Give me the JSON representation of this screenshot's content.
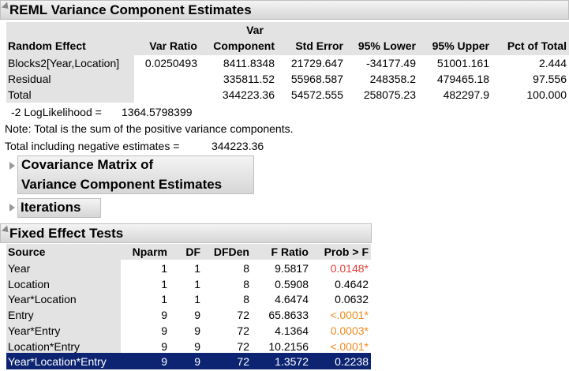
{
  "reml": {
    "title": "REML Variance Component Estimates",
    "header_top": "Var",
    "headers": [
      "Random Effect",
      "Var Ratio",
      "Component",
      "Std Error",
      "95% Lower",
      "95% Upper",
      "Pct of Total"
    ],
    "rows": [
      [
        "Blocks2[Year,Location]",
        "0.0250493",
        "8411.8348",
        "21729.647",
        "-34177.49",
        "51001.161",
        "2.444"
      ],
      [
        "Residual",
        null,
        "335811.52",
        "55968.587",
        "248358.2",
        "479465.18",
        "97.556"
      ],
      [
        "Total",
        null,
        "344223.36",
        "54572.555",
        "258075.23",
        "482297.9",
        "100.000"
      ]
    ],
    "loglik": {
      "label": "-2 LogLikelihood =",
      "value": "1364.5798399"
    },
    "note": "Note: Total is the sum of the positive variance components.",
    "total_negative": {
      "label": "Total including negative estimates =",
      "value": "344223.36"
    }
  },
  "covariance": {
    "lines": [
      "Covariance Matrix of",
      "Variance Component Estimates"
    ]
  },
  "iterations": {
    "title": "Iterations"
  },
  "fixed": {
    "title": "Fixed Effect Tests",
    "headers": [
      "Source",
      "Nparm",
      "DF",
      "DFDen",
      "F Ratio",
      "Prob > F"
    ],
    "rows": [
      {
        "cells": [
          "Year",
          "1",
          "1",
          "8",
          "9.5817",
          "0.0148*"
        ],
        "prob_color": "#e8413c"
      },
      {
        "cells": [
          "Location",
          "1",
          "1",
          "8",
          "0.5908",
          "0.4642"
        ]
      },
      {
        "cells": [
          "Year*Location",
          "1",
          "1",
          "8",
          "4.6474",
          "0.0632"
        ]
      },
      {
        "cells": [
          "Entry",
          "9",
          "9",
          "72",
          "65.8633",
          "<.0001*"
        ],
        "prob_color": "#f28a1e"
      },
      {
        "cells": [
          "Year*Entry",
          "9",
          "9",
          "72",
          "4.1364",
          "0.0003*"
        ],
        "prob_color": "#f28a1e"
      },
      {
        "cells": [
          "Location*Entry",
          "9",
          "9",
          "72",
          "10.2156",
          "<.0001*"
        ],
        "prob_color": "#f28a1e"
      },
      {
        "cells": [
          "Year*Location*Entry",
          "9",
          "9",
          "72",
          "1.3572",
          "0.2238"
        ],
        "selected": true
      }
    ]
  }
}
